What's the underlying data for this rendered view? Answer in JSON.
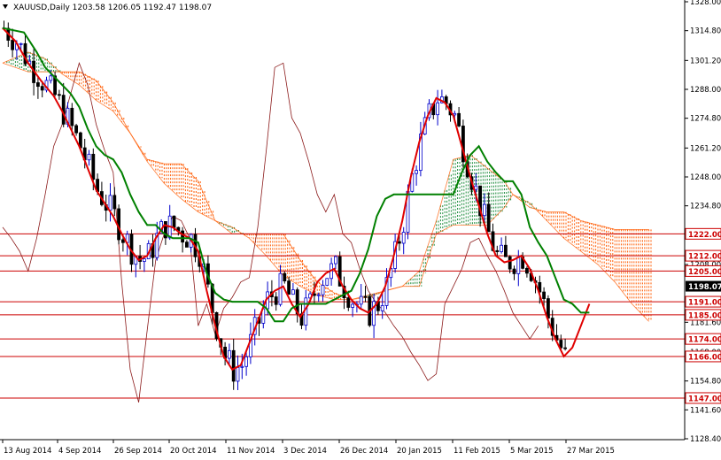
{
  "chart_data": {
    "type": "line",
    "title": "XAUUSD,Daily  1203.58 1206.05 1192.47 1198.07",
    "symbol_icon": "triangle-down-icon",
    "ylim": [
      1128.4,
      1328.0
    ],
    "y_ticks": [
      "1328.00",
      "1314.80",
      "1301.20",
      "1288.00",
      "1274.80",
      "1261.20",
      "1248.00",
      "1234.80",
      "1208.00",
      "1181.60",
      "1168.00",
      "1154.80",
      "1141.60",
      "1128.40"
    ],
    "x_labels": [
      "13 Aug 2014",
      "4 Sep 2014",
      "26 Sep 2014",
      "20 Oct 2014",
      "11 Nov 2014",
      "3 Dec 2014",
      "26 Dec 2014",
      "20 Jan 2015",
      "11 Feb 2015",
      "5 Mar 2015",
      "27 Mar 2015"
    ],
    "current_price": "1198.07",
    "horizontal_levels": [
      {
        "label": "1222.00",
        "value": 1222.0
      },
      {
        "label": "1212.00",
        "value": 1212.0
      },
      {
        "label": "1205.00",
        "value": 1205.0
      },
      {
        "label": "1191.00",
        "value": 1191.0
      },
      {
        "label": "1185.00",
        "value": 1185.0
      },
      {
        "label": "1174.00",
        "value": 1174.0
      },
      {
        "label": "1166.00",
        "value": 1166.0
      },
      {
        "label": "1147.00",
        "value": 1147.0
      }
    ],
    "colors": {
      "background": "#ffffff",
      "level_line": "#cc0000",
      "tenkan_sen": "#e00000",
      "kijun_sen": "#008000",
      "chikou_span": "#8b1a1a",
      "bearish_cloud": "#ff5a00",
      "bullish_cloud": "#1a8a3a",
      "candles": "#000000",
      "up_wick": "#0000cc",
      "price_label_bg": "#000000",
      "level_label_text": "#cc0000"
    },
    "series": [
      {
        "role": "tenkan_sen",
        "values": [
          [
            0,
            1316
          ],
          [
            3,
            1310
          ],
          [
            6,
            1300
          ],
          [
            9,
            1292
          ],
          [
            12,
            1285
          ],
          [
            14,
            1278
          ],
          [
            16,
            1270
          ],
          [
            18,
            1262
          ],
          [
            20,
            1252
          ],
          [
            22,
            1242
          ],
          [
            24,
            1236
          ],
          [
            26,
            1230
          ],
          [
            28,
            1222
          ],
          [
            30,
            1215
          ],
          [
            32,
            1210
          ],
          [
            34,
            1212
          ],
          [
            36,
            1220
          ],
          [
            38,
            1226
          ],
          [
            40,
            1225
          ],
          [
            42,
            1222
          ],
          [
            44,
            1220
          ],
          [
            46,
            1214
          ],
          [
            48,
            1196
          ],
          [
            50,
            1180
          ],
          [
            52,
            1166
          ],
          [
            54,
            1160
          ],
          [
            56,
            1162
          ],
          [
            58,
            1172
          ],
          [
            60,
            1182
          ],
          [
            62,
            1192
          ],
          [
            64,
            1196
          ],
          [
            66,
            1198
          ],
          [
            68,
            1190
          ],
          [
            70,
            1184
          ],
          [
            72,
            1190
          ],
          [
            74,
            1200
          ],
          [
            76,
            1204
          ],
          [
            78,
            1206
          ],
          [
            80,
            1198
          ],
          [
            82,
            1192
          ],
          [
            84,
            1188
          ],
          [
            86,
            1186
          ],
          [
            88,
            1190
          ],
          [
            90,
            1198
          ],
          [
            92,
            1212
          ],
          [
            94,
            1228
          ],
          [
            96,
            1248
          ],
          [
            98,
            1264
          ],
          [
            100,
            1276
          ],
          [
            102,
            1284
          ],
          [
            104,
            1282
          ],
          [
            106,
            1276
          ],
          [
            108,
            1262
          ],
          [
            110,
            1248
          ],
          [
            112,
            1235
          ],
          [
            114,
            1222
          ],
          [
            116,
            1212
          ],
          [
            118,
            1209
          ],
          [
            120,
            1210
          ],
          [
            122,
            1212
          ],
          [
            124,
            1206
          ],
          [
            126,
            1196
          ],
          [
            128,
            1184
          ],
          [
            130,
            1174
          ],
          [
            132,
            1166
          ],
          [
            134,
            1170
          ],
          [
            136,
            1180
          ],
          [
            138,
            1190
          ]
        ]
      },
      {
        "role": "kijun_sen",
        "values": [
          [
            0,
            1316
          ],
          [
            5,
            1314
          ],
          [
            8,
            1305
          ],
          [
            10,
            1298
          ],
          [
            14,
            1290
          ],
          [
            16,
            1286
          ],
          [
            18,
            1280
          ],
          [
            20,
            1270
          ],
          [
            22,
            1262
          ],
          [
            24,
            1258
          ],
          [
            26,
            1256
          ],
          [
            28,
            1250
          ],
          [
            30,
            1240
          ],
          [
            32,
            1232
          ],
          [
            34,
            1226
          ],
          [
            36,
            1226
          ],
          [
            38,
            1222
          ],
          [
            40,
            1220
          ],
          [
            42,
            1220
          ],
          [
            44,
            1220
          ],
          [
            46,
            1218
          ],
          [
            48,
            1204
          ],
          [
            50,
            1195
          ],
          [
            52,
            1192
          ],
          [
            54,
            1191
          ],
          [
            56,
            1191
          ],
          [
            58,
            1191
          ],
          [
            60,
            1191
          ],
          [
            62,
            1188
          ],
          [
            64,
            1182
          ],
          [
            66,
            1182
          ],
          [
            68,
            1188
          ],
          [
            70,
            1190
          ],
          [
            72,
            1190
          ],
          [
            74,
            1190
          ],
          [
            76,
            1190
          ],
          [
            78,
            1192
          ],
          [
            80,
            1194
          ],
          [
            82,
            1196
          ],
          [
            84,
            1204
          ],
          [
            86,
            1215
          ],
          [
            88,
            1230
          ],
          [
            90,
            1238
          ],
          [
            92,
            1240
          ],
          [
            94,
            1240
          ],
          [
            96,
            1240
          ],
          [
            98,
            1240
          ],
          [
            100,
            1240
          ],
          [
            102,
            1240
          ],
          [
            104,
            1240
          ],
          [
            106,
            1240
          ],
          [
            108,
            1250
          ],
          [
            110,
            1258
          ],
          [
            112,
            1262
          ],
          [
            114,
            1255
          ],
          [
            116,
            1250
          ],
          [
            118,
            1246
          ],
          [
            120,
            1246
          ],
          [
            122,
            1240
          ],
          [
            124,
            1225
          ],
          [
            126,
            1218
          ],
          [
            128,
            1212
          ],
          [
            130,
            1202
          ],
          [
            132,
            1192
          ],
          [
            134,
            1190
          ],
          [
            136,
            1186
          ],
          [
            138,
            1186
          ]
        ]
      },
      {
        "role": "chikou_span",
        "values": [
          [
            0,
            1225
          ],
          [
            2,
            1220
          ],
          [
            4,
            1214
          ],
          [
            6,
            1205
          ],
          [
            8,
            1220
          ],
          [
            10,
            1240
          ],
          [
            12,
            1262
          ],
          [
            14,
            1272
          ],
          [
            16,
            1286
          ],
          [
            18,
            1300
          ],
          [
            20,
            1290
          ],
          [
            22,
            1272
          ],
          [
            24,
            1260
          ],
          [
            26,
            1250
          ],
          [
            28,
            1200
          ],
          [
            30,
            1160
          ],
          [
            32,
            1145
          ],
          [
            34,
            1178
          ],
          [
            36,
            1210
          ],
          [
            38,
            1222
          ],
          [
            40,
            1230
          ],
          [
            42,
            1228
          ],
          [
            44,
            1220
          ],
          [
            46,
            1180
          ],
          [
            48,
            1190
          ],
          [
            50,
            1176
          ],
          [
            52,
            1188
          ],
          [
            54,
            1193
          ],
          [
            56,
            1200
          ],
          [
            58,
            1202
          ],
          [
            60,
            1225
          ],
          [
            62,
            1260
          ],
          [
            64,
            1298
          ],
          [
            66,
            1300
          ],
          [
            68,
            1275
          ],
          [
            70,
            1268
          ],
          [
            72,
            1255
          ],
          [
            74,
            1240
          ],
          [
            76,
            1232
          ],
          [
            78,
            1240
          ],
          [
            80,
            1222
          ],
          [
            82,
            1218
          ],
          [
            84,
            1206
          ],
          [
            86,
            1196
          ],
          [
            88,
            1190
          ],
          [
            90,
            1186
          ],
          [
            92,
            1180
          ],
          [
            94,
            1175
          ],
          [
            96,
            1168
          ],
          [
            98,
            1162
          ],
          [
            100,
            1155
          ],
          [
            102,
            1158
          ],
          [
            104,
            1190
          ],
          [
            106,
            1198
          ],
          [
            108,
            1206
          ],
          [
            110,
            1218
          ],
          [
            112,
            1220
          ],
          [
            114,
            1212
          ],
          [
            116,
            1205
          ],
          [
            118,
            1196
          ],
          [
            120,
            1186
          ],
          [
            122,
            1180
          ],
          [
            124,
            1174
          ],
          [
            126,
            1180
          ]
        ]
      },
      {
        "role": "senkou_span_a",
        "values": [
          [
            0,
            1300
          ],
          [
            6,
            1305
          ],
          [
            10,
            1302
          ],
          [
            14,
            1295
          ],
          [
            18,
            1290
          ],
          [
            22,
            1283
          ],
          [
            26,
            1278
          ],
          [
            30,
            1268
          ],
          [
            34,
            1255
          ],
          [
            38,
            1245
          ],
          [
            42,
            1238
          ],
          [
            46,
            1232
          ],
          [
            50,
            1228
          ],
          [
            54,
            1225
          ],
          [
            58,
            1220
          ],
          [
            62,
            1212
          ],
          [
            66,
            1203
          ],
          [
            70,
            1198
          ],
          [
            74,
            1194
          ],
          [
            78,
            1192
          ],
          [
            82,
            1192
          ],
          [
            86,
            1194
          ],
          [
            90,
            1196
          ],
          [
            94,
            1198
          ],
          [
            98,
            1205
          ],
          [
            102,
            1228
          ],
          [
            106,
            1256
          ],
          [
            110,
            1258
          ],
          [
            114,
            1252
          ],
          [
            118,
            1246
          ],
          [
            120,
            1240
          ],
          [
            124,
            1236
          ],
          [
            128,
            1228
          ],
          [
            132,
            1220
          ],
          [
            136,
            1214
          ],
          [
            140,
            1208
          ],
          [
            144,
            1200
          ],
          [
            148,
            1190
          ],
          [
            152,
            1182
          ]
        ]
      },
      {
        "role": "senkou_span_b",
        "values": [
          [
            0,
            1300
          ],
          [
            6,
            1296
          ],
          [
            10,
            1296
          ],
          [
            14,
            1296
          ],
          [
            18,
            1296
          ],
          [
            22,
            1292
          ],
          [
            26,
            1282
          ],
          [
            30,
            1268
          ],
          [
            34,
            1256
          ],
          [
            38,
            1254
          ],
          [
            42,
            1254
          ],
          [
            46,
            1246
          ],
          [
            50,
            1228
          ],
          [
            54,
            1222
          ],
          [
            58,
            1222
          ],
          [
            62,
            1222
          ],
          [
            66,
            1222
          ],
          [
            70,
            1210
          ],
          [
            74,
            1200
          ],
          [
            78,
            1195
          ],
          [
            82,
            1192
          ],
          [
            86,
            1193
          ],
          [
            90,
            1196
          ],
          [
            94,
            1198
          ],
          [
            98,
            1198
          ],
          [
            102,
            1222
          ],
          [
            106,
            1226
          ],
          [
            110,
            1226
          ],
          [
            114,
            1226
          ],
          [
            118,
            1234
          ],
          [
            120,
            1240
          ],
          [
            124,
            1234
          ],
          [
            128,
            1232
          ],
          [
            132,
            1232
          ],
          [
            136,
            1228
          ],
          [
            140,
            1226
          ],
          [
            144,
            1224
          ],
          [
            148,
            1224
          ],
          [
            152,
            1224
          ]
        ]
      }
    ]
  }
}
